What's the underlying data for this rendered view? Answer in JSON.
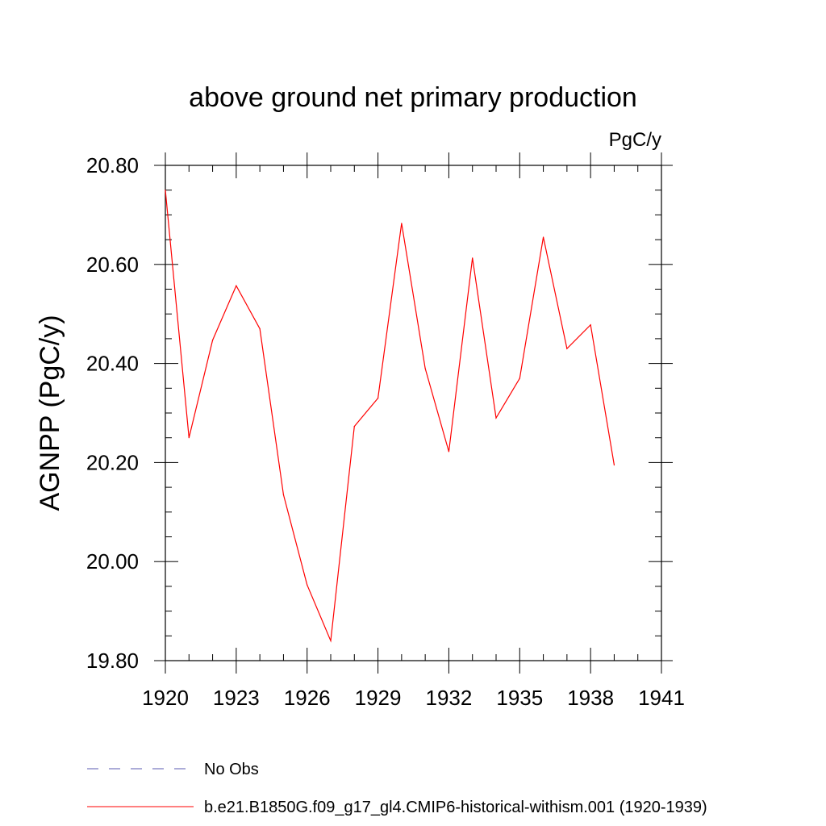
{
  "chart_data": {
    "type": "line",
    "title": "above ground net primary production",
    "units": "PgC/y",
    "xlabel": "",
    "ylabel": "AGNPP  (PgC/y)",
    "xlim": [
      1920,
      1941
    ],
    "ylim": [
      19.8,
      20.8
    ],
    "xticks": [
      "1920",
      "1923",
      "1926",
      "1929",
      "1932",
      "1935",
      "1938",
      "1941"
    ],
    "yticks": [
      "19.80",
      "20.00",
      "20.20",
      "20.40",
      "20.60",
      "20.80"
    ],
    "grid": false,
    "legend_position": "bottom",
    "series": [
      {
        "name": "b.e21.B1850G.f09_g17_gl4.CMIP6-historical-withism.001 (1920-1939)",
        "color": "#ff0000",
        "style": "solid",
        "x": [
          1920,
          1921,
          1922,
          1923,
          1924,
          1925,
          1926,
          1927,
          1928,
          1929,
          1930,
          1931,
          1932,
          1933,
          1934,
          1935,
          1936,
          1937,
          1938,
          1939
        ],
        "values": [
          20.75,
          20.25,
          20.447,
          20.557,
          20.47,
          20.135,
          19.953,
          19.84,
          20.273,
          20.33,
          20.683,
          20.39,
          20.222,
          20.613,
          20.29,
          20.37,
          20.655,
          20.43,
          20.478,
          20.195
        ]
      },
      {
        "name": "No Obs",
        "color": "#5a5ab0",
        "style": "dashed",
        "x": [],
        "values": []
      }
    ]
  }
}
